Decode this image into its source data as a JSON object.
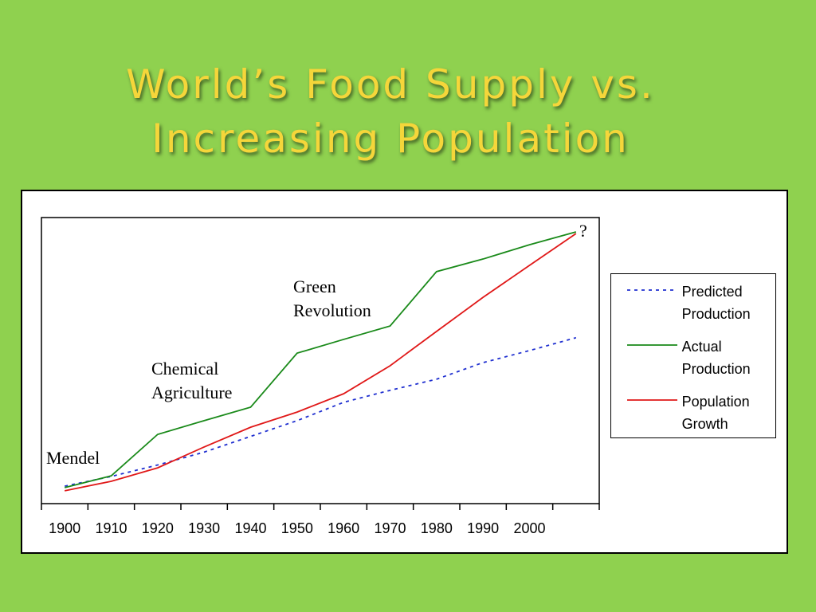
{
  "chart_data": {
    "type": "line",
    "title": "World’s Food Supply vs. Increasing Population",
    "x": [
      1900,
      1910,
      1920,
      1930,
      1940,
      1950,
      1960,
      1970,
      1980,
      1990,
      2000,
      2010
    ],
    "xlim": [
      1895,
      2015
    ],
    "xticks": [
      1900,
      1910,
      1920,
      1930,
      1940,
      1950,
      1960,
      1970,
      1980,
      1990,
      2000
    ],
    "ylim": [
      0,
      100
    ],
    "series": [
      {
        "name": "Predicted Production",
        "color": "#1f2fd0",
        "dash": true,
        "values": [
          6.1,
          9.5,
          13.5,
          18,
          23.5,
          29,
          35.4,
          39.6,
          43.5,
          49.3,
          53.5,
          58
        ]
      },
      {
        "name": "Actual Production",
        "color": "#1a8a1a",
        "values": [
          5.6,
          9.7,
          24.2,
          29,
          33.7,
          52.6,
          57.4,
          62.1,
          81.1,
          85.5,
          90.5,
          95
        ]
      },
      {
        "name": "Population Growth",
        "color": "#e01818",
        "values": [
          4.5,
          7.8,
          12.5,
          19.8,
          26.7,
          32,
          38.4,
          48.2,
          60.2,
          72.1,
          83.3,
          94.4
        ]
      }
    ],
    "annotations": [
      "Mendel",
      "Chemical",
      "Agriculture",
      "Green",
      "Revolution",
      "?"
    ],
    "legend": "right"
  }
}
